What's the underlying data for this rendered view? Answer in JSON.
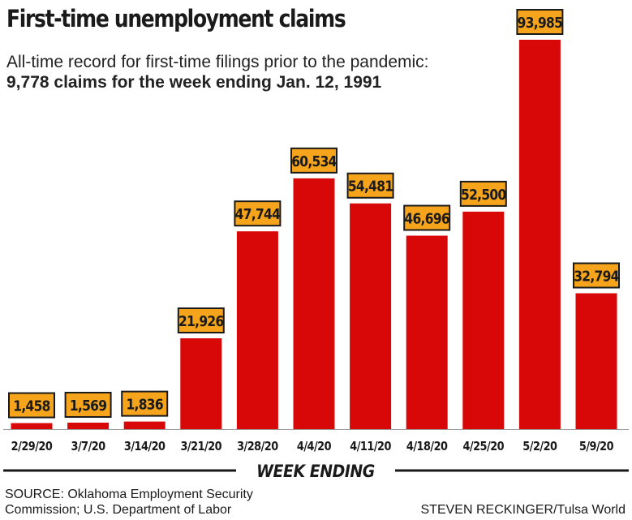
{
  "chart_data": {
    "type": "bar",
    "title": "First-time unemployment claims",
    "subtitle_line1": "All-time record for first-time filings prior to the pandemic:",
    "subtitle_line2": "9,778 claims for the week ending Jan. 12, 1991",
    "xlabel": "WEEK ENDING",
    "ylabel": "",
    "ylim": [
      0,
      100000
    ],
    "grid": false,
    "categories": [
      "2/29/20",
      "3/7/20",
      "3/14/20",
      "3/21/20",
      "3/28/20",
      "4/4/20",
      "4/11/20",
      "4/18/20",
      "4/25/20",
      "5/2/20",
      "5/9/20"
    ],
    "values": [
      1458,
      1569,
      1836,
      21926,
      47744,
      60534,
      54481,
      46696,
      52500,
      93985,
      32794
    ],
    "value_labels": [
      "1,458",
      "1,569",
      "1,836",
      "21,926",
      "47,744",
      "60,534",
      "54,481",
      "46,696",
      "52,500",
      "93,985",
      "32,794"
    ]
  },
  "footer": {
    "source_line1": "SOURCE: Oklahoma Employment Security",
    "source_line2": "Commission; U.S. Department of Labor",
    "credit": "STEVEN RECKINGER/Tulsa World"
  },
  "colors": {
    "bar": "#d90808",
    "label_fill": "#f5a41c",
    "label_border": "#1a1a1a",
    "text": "#1a1a1a"
  }
}
